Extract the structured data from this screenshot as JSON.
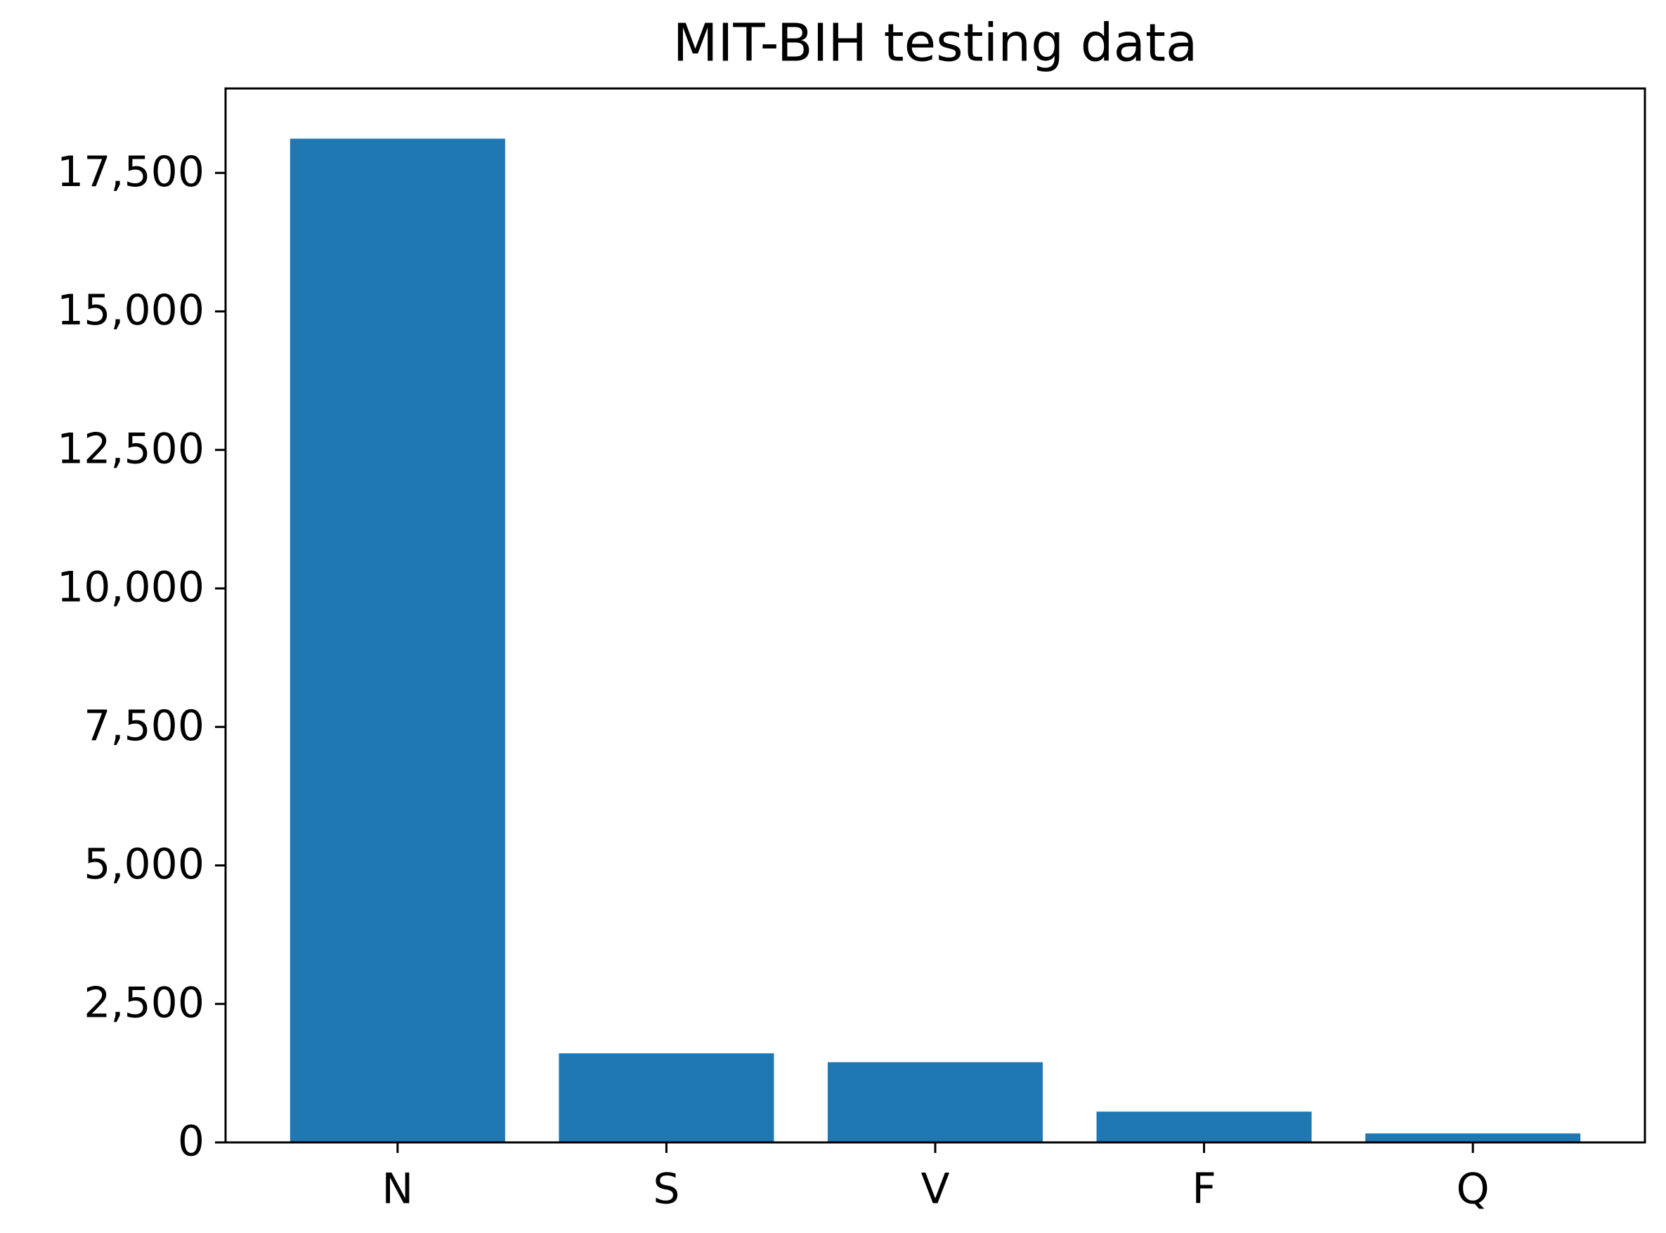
{
  "chart_data": {
    "type": "bar",
    "title": "MIT-BIH testing data",
    "categories": [
      "N",
      "S",
      "V",
      "F",
      "Q"
    ],
    "values": [
      18118,
      1608,
      1448,
      556,
      162
    ],
    "color": "#1f77b4",
    "ylim": [
      0,
      19024
    ],
    "yticks": [
      0,
      {
        "value": 2500,
        "label": "2,500"
      },
      {
        "value": 5000,
        "label": "5,000"
      },
      {
        "value": 7500,
        "label": "7,500"
      },
      {
        "value": 10000,
        "label": "10,000"
      },
      {
        "value": 12500,
        "label": "12,500"
      },
      {
        "value": 15000,
        "label": "15,000"
      },
      {
        "value": 17500,
        "label": "17,500"
      }
    ],
    "grid": false
  }
}
